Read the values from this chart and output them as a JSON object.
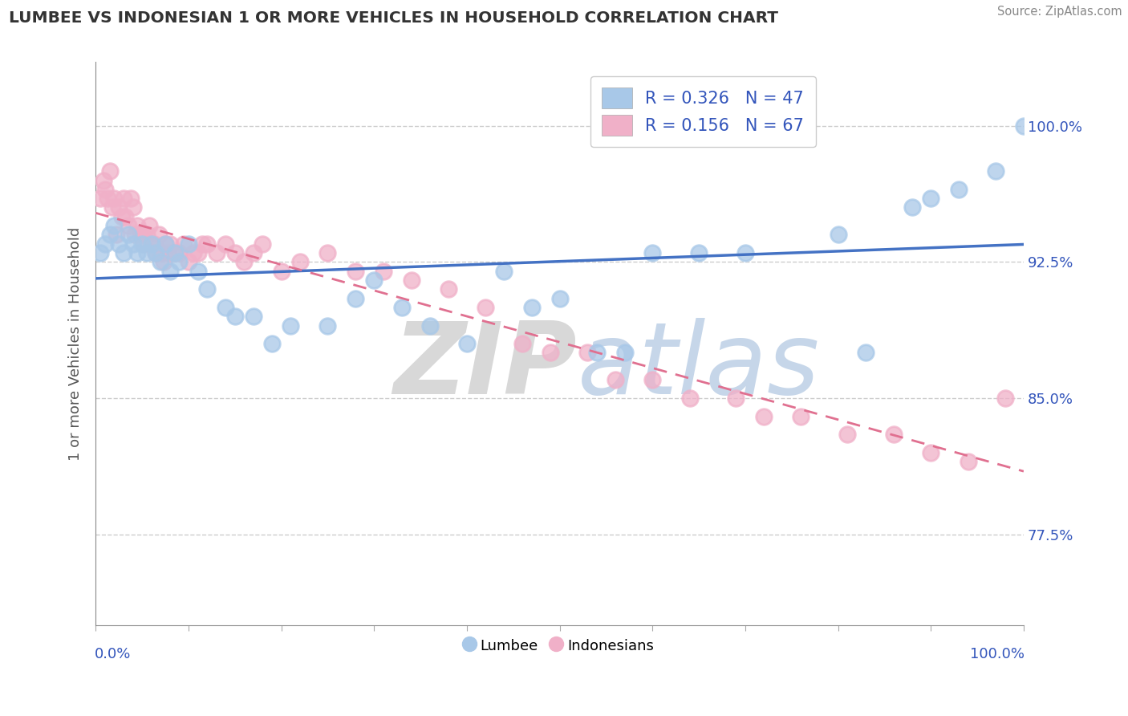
{
  "title": "LUMBEE VS INDONESIAN 1 OR MORE VEHICLES IN HOUSEHOLD CORRELATION CHART",
  "source": "Source: ZipAtlas.com",
  "ylabel": "1 or more Vehicles in Household",
  "ytick_labels": [
    "77.5%",
    "85.0%",
    "92.5%",
    "100.0%"
  ],
  "ytick_values": [
    0.775,
    0.85,
    0.925,
    1.0
  ],
  "xlim": [
    0.0,
    1.0
  ],
  "ylim": [
    0.725,
    1.035
  ],
  "legend_blue_r": "R = 0.326",
  "legend_blue_n": "N = 47",
  "legend_pink_r": "R = 0.156",
  "legend_pink_n": "N = 67",
  "legend_label_blue": "Lumbee",
  "legend_label_pink": "Indonesians",
  "blue_color": "#a8c8e8",
  "pink_color": "#f0b0c8",
  "blue_line_color": "#4472c4",
  "pink_line_color": "#e07090",
  "blue_x": [
    0.005,
    0.01,
    0.015,
    0.02,
    0.025,
    0.03,
    0.035,
    0.04,
    0.045,
    0.05,
    0.055,
    0.06,
    0.065,
    0.07,
    0.075,
    0.08,
    0.085,
    0.09,
    0.1,
    0.11,
    0.12,
    0.14,
    0.15,
    0.17,
    0.19,
    0.21,
    0.25,
    0.28,
    0.3,
    0.33,
    0.36,
    0.4,
    0.44,
    0.47,
    0.5,
    0.54,
    0.57,
    0.6,
    0.65,
    0.7,
    0.8,
    0.83,
    0.88,
    0.9,
    0.93,
    0.97,
    1.0
  ],
  "blue_y": [
    0.93,
    0.935,
    0.94,
    0.945,
    0.935,
    0.93,
    0.94,
    0.935,
    0.93,
    0.935,
    0.93,
    0.935,
    0.93,
    0.925,
    0.935,
    0.92,
    0.93,
    0.925,
    0.935,
    0.92,
    0.91,
    0.9,
    0.895,
    0.895,
    0.88,
    0.89,
    0.89,
    0.905,
    0.915,
    0.9,
    0.89,
    0.88,
    0.92,
    0.9,
    0.905,
    0.875,
    0.875,
    0.93,
    0.93,
    0.93,
    0.94,
    0.875,
    0.955,
    0.96,
    0.965,
    0.975,
    1.0
  ],
  "pink_x": [
    0.005,
    0.008,
    0.01,
    0.013,
    0.015,
    0.018,
    0.02,
    0.022,
    0.025,
    0.028,
    0.03,
    0.032,
    0.035,
    0.038,
    0.04,
    0.042,
    0.045,
    0.048,
    0.05,
    0.052,
    0.055,
    0.058,
    0.06,
    0.063,
    0.065,
    0.068,
    0.07,
    0.073,
    0.075,
    0.078,
    0.08,
    0.085,
    0.09,
    0.095,
    0.1,
    0.105,
    0.11,
    0.115,
    0.12,
    0.13,
    0.14,
    0.15,
    0.16,
    0.17,
    0.18,
    0.2,
    0.22,
    0.25,
    0.28,
    0.31,
    0.34,
    0.38,
    0.42,
    0.46,
    0.49,
    0.53,
    0.56,
    0.6,
    0.64,
    0.69,
    0.72,
    0.76,
    0.81,
    0.86,
    0.9,
    0.94,
    0.98
  ],
  "pink_y": [
    0.96,
    0.97,
    0.965,
    0.96,
    0.975,
    0.955,
    0.96,
    0.94,
    0.955,
    0.95,
    0.96,
    0.95,
    0.945,
    0.96,
    0.955,
    0.94,
    0.945,
    0.94,
    0.94,
    0.935,
    0.94,
    0.945,
    0.935,
    0.935,
    0.93,
    0.94,
    0.93,
    0.925,
    0.935,
    0.93,
    0.935,
    0.93,
    0.93,
    0.935,
    0.925,
    0.93,
    0.93,
    0.935,
    0.935,
    0.93,
    0.935,
    0.93,
    0.925,
    0.93,
    0.935,
    0.92,
    0.925,
    0.93,
    0.92,
    0.92,
    0.915,
    0.91,
    0.9,
    0.88,
    0.875,
    0.875,
    0.86,
    0.86,
    0.85,
    0.85,
    0.84,
    0.84,
    0.83,
    0.83,
    0.82,
    0.815,
    0.85
  ]
}
